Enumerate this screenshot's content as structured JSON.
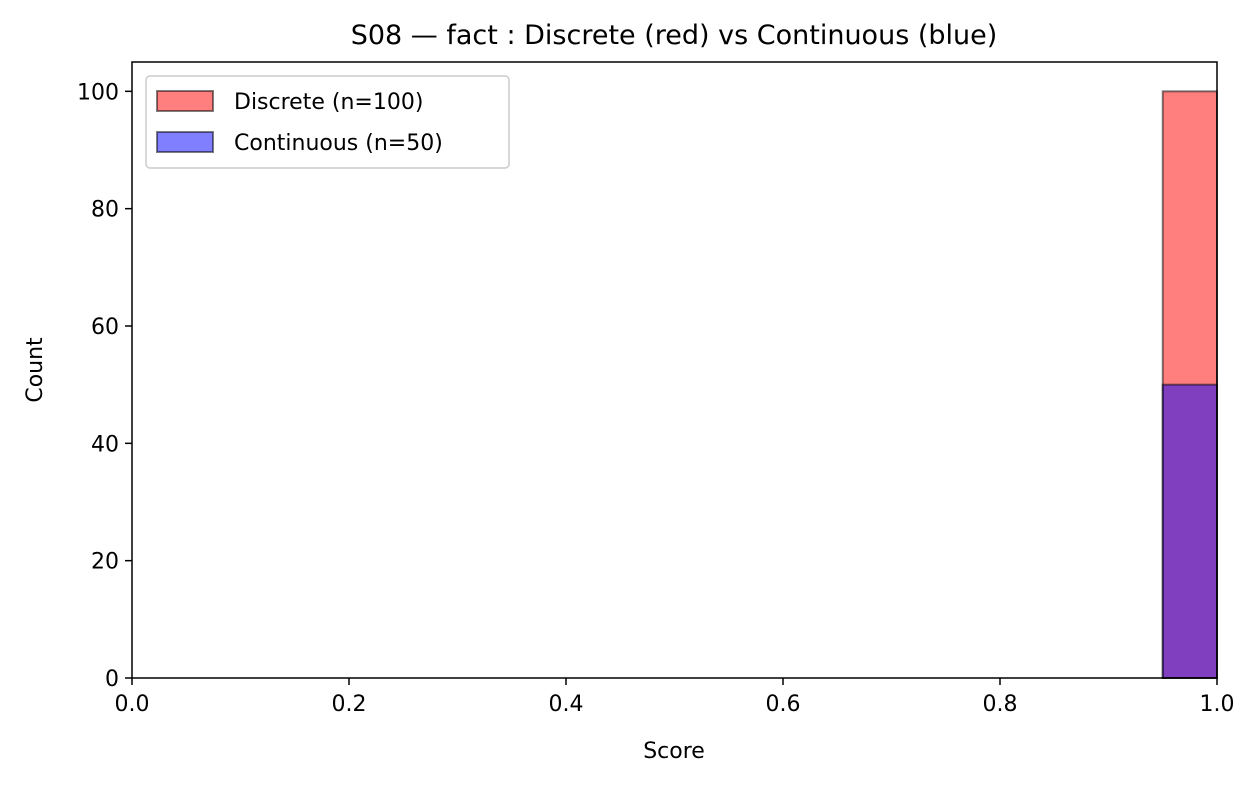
{
  "chart_data": {
    "type": "bar",
    "title": "S08 — fact : Discrete (red) vs Continuous (blue)",
    "xlabel": "Score",
    "ylabel": "Count",
    "xlim": [
      0.0,
      1.0
    ],
    "ylim": [
      0,
      105
    ],
    "xticks": [
      0.0,
      0.2,
      0.4,
      0.6,
      0.8,
      1.0
    ],
    "xtick_labels": [
      "0.0",
      "0.2",
      "0.4",
      "0.6",
      "0.8",
      "1.0"
    ],
    "yticks": [
      0,
      20,
      40,
      60,
      80,
      100
    ],
    "ytick_labels": [
      "0",
      "20",
      "40",
      "60",
      "80",
      "100"
    ],
    "legend_placement": "top-left",
    "grid": false,
    "series": [
      {
        "name": "Discrete (n=100)",
        "color": "#ff0000",
        "alpha": 0.5,
        "bins": [
          {
            "x0": 0.95,
            "x1": 1.0,
            "count": 100
          }
        ]
      },
      {
        "name": "Continuous (n=50)",
        "color": "#0000ff",
        "alpha": 0.5,
        "bins": [
          {
            "x0": 0.95,
            "x1": 1.0,
            "count": 50
          }
        ]
      }
    ]
  }
}
